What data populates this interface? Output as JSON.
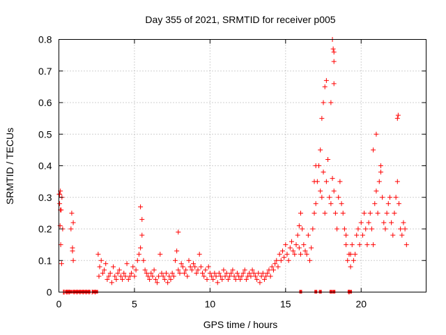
{
  "chart_data": {
    "type": "scatter",
    "title": "Day 355 of 2021, SRMTID for receiver p005",
    "xlabel": "GPS time / hours",
    "ylabel": "SRMTID / TECUs",
    "xlim": [
      0,
      24.3
    ],
    "ylim": [
      0,
      0.8
    ],
    "x_ticks": [
      0,
      5,
      10,
      15,
      20
    ],
    "x_tick_labels": [
      "0",
      "5",
      "10",
      "15",
      "20"
    ],
    "y_ticks": [
      0,
      0.1,
      0.2,
      0.3,
      0.4,
      0.5,
      0.6,
      0.7,
      0.8
    ],
    "y_tick_labels": [
      "0",
      "0.1",
      "0.2",
      "0.3",
      "0.4",
      "0.5",
      "0.6",
      "0.7",
      "0.8"
    ],
    "grid": true,
    "marker": "+",
    "marker_color": "#ff0000",
    "series": [
      {
        "name": "SRMTID",
        "x": [
          0.02,
          0.05,
          0.08,
          0.1,
          0.12,
          0.15,
          0.18,
          0.2,
          0.25,
          0.3,
          0.35,
          0.5,
          0.6,
          0.7,
          0.8,
          0.85,
          0.9,
          0.95,
          1.0,
          1.2,
          1.4,
          1.6,
          1.8,
          2.0,
          2.2,
          2.4,
          2.6,
          2.65,
          2.7,
          2.8,
          2.9,
          3.0,
          3.1,
          3.2,
          3.3,
          3.4,
          3.5,
          3.6,
          3.7,
          3.8,
          3.9,
          4.0,
          4.1,
          4.2,
          4.3,
          4.4,
          4.5,
          4.6,
          4.7,
          4.8,
          4.9,
          5.0,
          5.1,
          5.2,
          5.3,
          5.4,
          5.5,
          5.6,
          5.7,
          5.8,
          5.9,
          6.0,
          6.1,
          6.2,
          6.3,
          6.4,
          6.5,
          6.6,
          6.7,
          6.8,
          6.9,
          7.0,
          7.1,
          7.2,
          7.3,
          7.4,
          7.5,
          7.6,
          7.7,
          7.8,
          7.9,
          8.0,
          8.1,
          8.2,
          8.3,
          8.4,
          8.5,
          8.6,
          8.7,
          8.8,
          8.9,
          9.0,
          9.1,
          9.2,
          9.3,
          9.4,
          9.5,
          9.6,
          9.7,
          9.8,
          9.9,
          10.0,
          10.1,
          10.2,
          10.3,
          10.4,
          10.5,
          10.6,
          10.7,
          10.8,
          10.9,
          11.0,
          11.1,
          11.2,
          11.3,
          11.4,
          11.5,
          11.6,
          11.7,
          11.8,
          11.9,
          12.0,
          12.1,
          12.2,
          12.3,
          12.4,
          12.5,
          12.6,
          12.7,
          12.8,
          12.9,
          13.0,
          13.1,
          13.2,
          13.3,
          13.4,
          13.5,
          13.6,
          13.7,
          13.8,
          13.9,
          14.0,
          14.1,
          14.2,
          14.3,
          14.4,
          14.5,
          14.6,
          14.7,
          14.8,
          14.9,
          15.0,
          15.1,
          15.2,
          15.3,
          15.4,
          15.5,
          15.6,
          15.7,
          15.8,
          15.9,
          16.0,
          16.1,
          16.2,
          16.3,
          16.4,
          16.5,
          16.6,
          16.7,
          16.8,
          16.9,
          17.0,
          17.1,
          17.2,
          17.3,
          17.4,
          17.5,
          17.6,
          17.7,
          17.8,
          17.9,
          18.0,
          18.1,
          18.2,
          18.3,
          18.4,
          18.5,
          18.6,
          18.7,
          18.8,
          18.9,
          19.0,
          19.1,
          19.2,
          19.3,
          19.4,
          19.5,
          19.6,
          19.7,
          19.8,
          19.9,
          20.0,
          20.1,
          20.2,
          20.3,
          20.4,
          20.5,
          20.6,
          20.7,
          20.8,
          20.9,
          21.0,
          21.1,
          21.2,
          21.3,
          21.4,
          21.5,
          21.6,
          21.7,
          21.8,
          21.9,
          22.0,
          22.1,
          22.2,
          22.3,
          22.4,
          22.5,
          22.6,
          22.7,
          22.8,
          22.9,
          23.0,
          17.5,
          17.6,
          17.7,
          18.1,
          18.15,
          18.2,
          18.2,
          22.4,
          22.45,
          0.05,
          0.1,
          0.9,
          0.95,
          5.4,
          5.5,
          7.9,
          16.0,
          17.3,
          17.4,
          18.0,
          19.0,
          20.8,
          21.0,
          21.3,
          16.9,
          18.2,
          19.3,
          15.9,
          17.0,
          19.2
        ],
        "y": [
          0.31,
          0.28,
          0.21,
          0.32,
          0.15,
          0.26,
          0.09,
          0.3,
          0.2,
          0.0,
          0.0,
          0.0,
          0.0,
          0.0,
          0.2,
          0.25,
          0.14,
          0.22,
          0.0,
          0.0,
          0.0,
          0.0,
          0.0,
          0.0,
          0.0,
          0.0,
          0.12,
          0.05,
          0.08,
          0.1,
          0.06,
          0.07,
          0.09,
          0.04,
          0.05,
          0.06,
          0.03,
          0.08,
          0.05,
          0.04,
          0.06,
          0.07,
          0.05,
          0.04,
          0.06,
          0.05,
          0.09,
          0.04,
          0.05,
          0.06,
          0.08,
          0.05,
          0.07,
          0.1,
          0.12,
          0.14,
          0.18,
          0.1,
          0.07,
          0.06,
          0.05,
          0.04,
          0.06,
          0.05,
          0.07,
          0.04,
          0.03,
          0.05,
          0.12,
          0.06,
          0.05,
          0.04,
          0.06,
          0.03,
          0.05,
          0.04,
          0.06,
          0.05,
          0.1,
          0.13,
          0.07,
          0.06,
          0.09,
          0.08,
          0.06,
          0.07,
          0.05,
          0.1,
          0.08,
          0.07,
          0.09,
          0.08,
          0.06,
          0.07,
          0.12,
          0.08,
          0.06,
          0.05,
          0.07,
          0.04,
          0.08,
          0.06,
          0.05,
          0.04,
          0.06,
          0.05,
          0.03,
          0.06,
          0.05,
          0.04,
          0.07,
          0.05,
          0.06,
          0.04,
          0.05,
          0.06,
          0.07,
          0.05,
          0.04,
          0.06,
          0.05,
          0.04,
          0.05,
          0.06,
          0.07,
          0.04,
          0.05,
          0.06,
          0.05,
          0.07,
          0.06,
          0.05,
          0.04,
          0.06,
          0.03,
          0.05,
          0.06,
          0.04,
          0.05,
          0.06,
          0.07,
          0.05,
          0.08,
          0.07,
          0.09,
          0.1,
          0.08,
          0.12,
          0.1,
          0.13,
          0.11,
          0.15,
          0.12,
          0.1,
          0.14,
          0.16,
          0.13,
          0.12,
          0.15,
          0.18,
          0.14,
          0.12,
          0.2,
          0.15,
          0.13,
          0.12,
          0.18,
          0.1,
          0.14,
          0.2,
          0.25,
          0.28,
          0.35,
          0.4,
          0.32,
          0.3,
          0.38,
          0.25,
          0.35,
          0.42,
          0.3,
          0.28,
          0.36,
          0.32,
          0.25,
          0.2,
          0.3,
          0.35,
          0.28,
          0.25,
          0.2,
          0.15,
          0.1,
          0.12,
          0.08,
          0.15,
          0.1,
          0.12,
          0.18,
          0.2,
          0.15,
          0.22,
          0.18,
          0.25,
          0.2,
          0.15,
          0.22,
          0.25,
          0.2,
          0.15,
          0.28,
          0.32,
          0.25,
          0.35,
          0.4,
          0.3,
          0.22,
          0.2,
          0.25,
          0.28,
          0.3,
          0.22,
          0.18,
          0.25,
          0.3,
          0.35,
          0.28,
          0.2,
          0.18,
          0.22,
          0.2,
          0.15,
          0.6,
          0.65,
          0.67,
          0.8,
          0.77,
          0.76,
          0.73,
          0.55,
          0.56,
          0.31,
          0.26,
          0.13,
          0.1,
          0.27,
          0.23,
          0.19,
          0.25,
          0.45,
          0.55,
          0.6,
          0.18,
          0.45,
          0.5,
          0.38,
          0.35,
          0.66,
          0.12,
          0.21,
          0.4,
          0.0
        ],
        "zero_x": [
          0.5,
          0.6,
          0.7,
          0.8,
          1.0,
          1.1,
          1.2,
          1.3,
          1.4,
          1.5,
          1.6,
          1.7,
          1.8,
          1.9,
          2.0,
          2.3,
          2.5,
          16.0,
          17.0,
          17.3,
          18.0,
          18.2,
          19.2,
          19.3
        ]
      }
    ]
  }
}
